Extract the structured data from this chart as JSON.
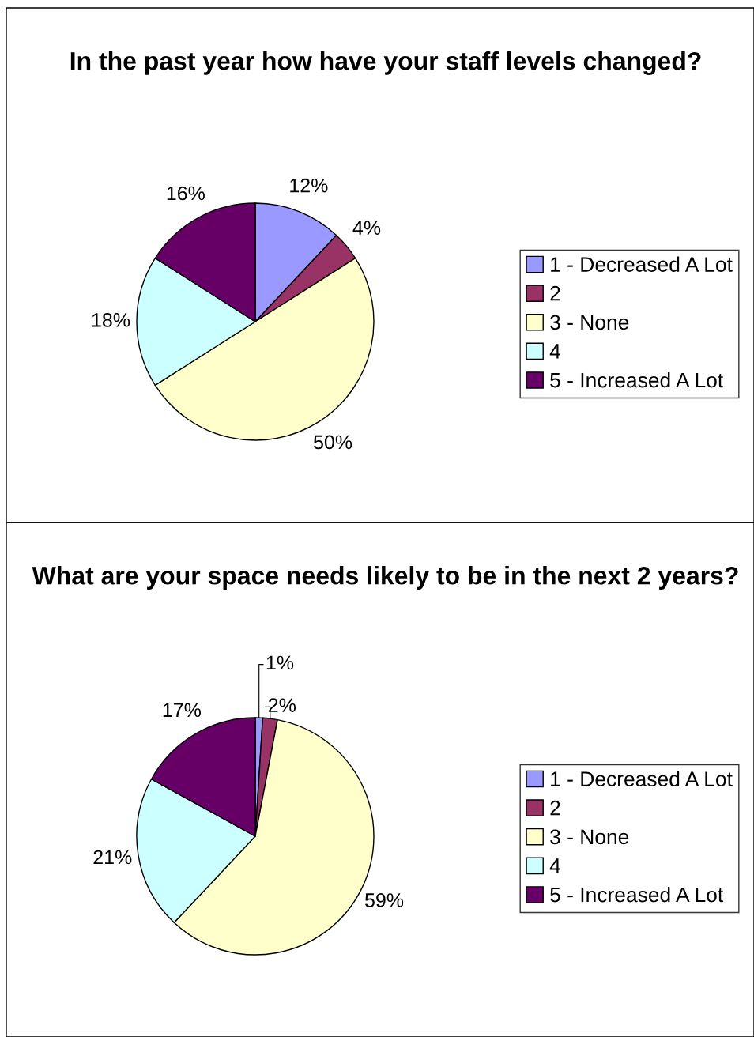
{
  "chart_data": [
    {
      "type": "pie",
      "title": "In the past year how have your staff levels changed?",
      "categories": [
        "1 - Decreased A Lot",
        "2",
        "3 - None",
        "4",
        "5 - Increased A Lot"
      ],
      "values": [
        12,
        4,
        50,
        18,
        16
      ],
      "value_labels": [
        "12%",
        "4%",
        "50%",
        "18%",
        "16%"
      ],
      "colors": [
        "#9999ff",
        "#993366",
        "#ffffcc",
        "#ccffff",
        "#660066"
      ],
      "legend": "right"
    },
    {
      "type": "pie",
      "title": "What are your space needs likely to be in the next 2 years?",
      "categories": [
        "1 - Decreased A Lot",
        "2",
        "3 - None",
        "4",
        "5 - Increased A Lot"
      ],
      "values": [
        1,
        2,
        59,
        21,
        17
      ],
      "value_labels": [
        "1%",
        "2%",
        "59%",
        "21%",
        "17%"
      ],
      "colors": [
        "#9999ff",
        "#993366",
        "#ffffcc",
        "#ccffff",
        "#660066"
      ],
      "legend": "right"
    }
  ]
}
